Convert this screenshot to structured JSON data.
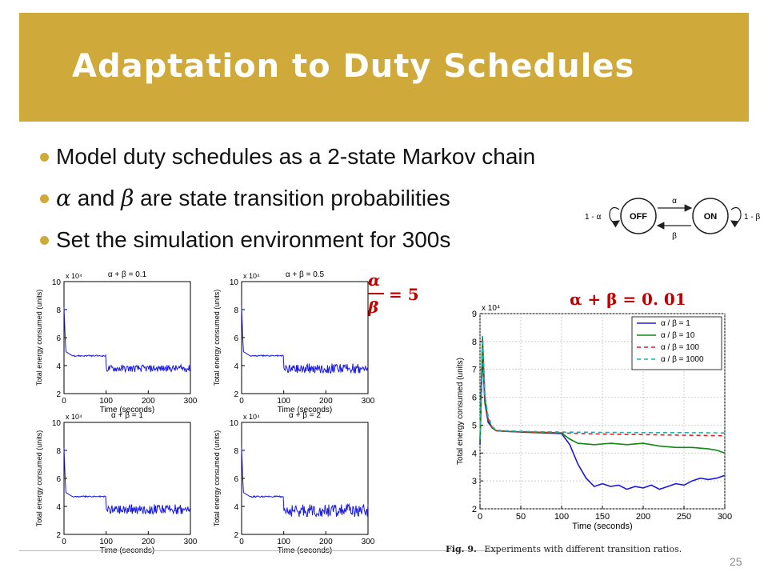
{
  "slide": {
    "title": "Adaptation to Duty Schedules",
    "bullets": [
      {
        "greek1": "",
        "greek2": "",
        "text": "Model duty schedules as a 2-state Markov chain"
      },
      {
        "greek1": "α",
        "mid": " and ",
        "greek2": "β",
        "text": " are state transition probabilities"
      },
      {
        "greek1": "",
        "greek2": "",
        "text": "Set the simulation environment for 300s"
      }
    ],
    "page_number": "25",
    "colors": {
      "title_bar": "#cfaa3a",
      "bullet_dot": "#cfaa3a",
      "formula": "#c00000",
      "text": "#111111"
    }
  },
  "markov_diagram": {
    "state_off": "OFF",
    "state_on": "ON",
    "self_loop_off": "1 - α",
    "self_loop_on": "1 - β",
    "arrow_top": "α",
    "arrow_bottom": "β"
  },
  "formulas": {
    "ratio_num": "α",
    "ratio_den": "β",
    "ratio_value": "= 5",
    "sum": "α + β = 0. 01"
  },
  "caption": {
    "label": "Fig. 9.",
    "text": "Experiments with different transition ratios."
  },
  "chart_data": [
    {
      "type": "line",
      "title": "α + β = 0.1",
      "xlabel": "Time (seconds)",
      "ylabel": "Total energy consumed (units)",
      "y_multiplier": "x 10⁴",
      "xlim": [
        0,
        300
      ],
      "ylim": [
        2,
        10
      ],
      "xticks": [
        "0",
        "100",
        "200",
        "300"
      ],
      "yticks": [
        "2",
        "4",
        "6",
        "8",
        "10"
      ],
      "color": "#1a1adb",
      "profile": {
        "start": 8.2,
        "step_x": 100,
        "before": 4.7,
        "after": 3.8,
        "noise_before": 0.05,
        "noise_after": 0.25
      }
    },
    {
      "type": "line",
      "title": "α + β = 0.5",
      "xlabel": "Time (seconds)",
      "ylabel": "Total energy consumed (units)",
      "y_multiplier": "x 10⁴",
      "xlim": [
        0,
        300
      ],
      "ylim": [
        2,
        10
      ],
      "xticks": [
        "0",
        "100",
        "200",
        "300"
      ],
      "yticks": [
        "2",
        "4",
        "6",
        "8",
        "10"
      ],
      "color": "#1a1adb",
      "profile": {
        "start": 8.2,
        "step_x": 100,
        "before": 4.7,
        "after": 3.8,
        "noise_before": 0.05,
        "noise_after": 0.35
      }
    },
    {
      "type": "line",
      "title": "α + β = 1",
      "xlabel": "Time (seconds)",
      "ylabel": "Total energy consumed (units)",
      "y_multiplier": "x 10⁴",
      "xlim": [
        0,
        300
      ],
      "ylim": [
        2,
        10
      ],
      "xticks": [
        "0",
        "100",
        "200",
        "300"
      ],
      "yticks": [
        "2",
        "4",
        "6",
        "8",
        "10"
      ],
      "color": "#1a1adb",
      "profile": {
        "start": 8.2,
        "step_x": 100,
        "before": 4.7,
        "after": 3.8,
        "noise_before": 0.05,
        "noise_after": 0.35
      }
    },
    {
      "type": "line",
      "title": "α + β = 2",
      "xlabel": "Time (seconds)",
      "ylabel": "Total energy consumed (units)",
      "y_multiplier": "x 10⁴",
      "xlim": [
        0,
        300
      ],
      "ylim": [
        2,
        10
      ],
      "xticks": [
        "0",
        "100",
        "200",
        "300"
      ],
      "yticks": [
        "2",
        "4",
        "6",
        "8",
        "10"
      ],
      "color": "#1a1adb",
      "profile": {
        "start": 8.2,
        "step_x": 100,
        "before": 4.7,
        "after": 3.7,
        "noise_before": 0.05,
        "noise_after": 0.45
      }
    },
    {
      "type": "line",
      "title": "",
      "xlabel": "Time (seconds)",
      "ylabel": "Total energy consumed (units)",
      "y_multiplier": "x 10⁴",
      "xlim": [
        0,
        300
      ],
      "ylim": [
        2,
        9
      ],
      "xticks": [
        "0",
        "50",
        "100",
        "150",
        "200",
        "250",
        "300"
      ],
      "yticks": [
        "2",
        "3",
        "4",
        "5",
        "6",
        "7",
        "8",
        "9"
      ],
      "grid": true,
      "legend_position": "top-right",
      "series": [
        {
          "name": "α / β = 1",
          "color": "#1a1adb",
          "dash": "",
          "x": [
            0,
            3,
            6,
            10,
            15,
            20,
            30,
            50,
            80,
            100,
            110,
            120,
            130,
            140,
            150,
            160,
            170,
            180,
            190,
            200,
            210,
            220,
            230,
            240,
            250,
            260,
            270,
            280,
            290,
            300
          ],
          "y": [
            4.3,
            7.6,
            5.8,
            5.1,
            4.9,
            4.8,
            4.78,
            4.75,
            4.72,
            4.7,
            4.3,
            3.6,
            3.1,
            2.8,
            2.9,
            2.8,
            2.85,
            2.7,
            2.8,
            2.75,
            2.85,
            2.7,
            2.8,
            2.9,
            2.85,
            3.0,
            3.1,
            3.05,
            3.1,
            3.2
          ]
        },
        {
          "name": "α / β = 10",
          "color": "#0f8a0f",
          "dash": "",
          "x": [
            0,
            3,
            6,
            10,
            15,
            20,
            30,
            50,
            80,
            100,
            110,
            120,
            140,
            160,
            180,
            200,
            220,
            240,
            260,
            280,
            290,
            300
          ],
          "y": [
            4.4,
            8.2,
            5.9,
            5.2,
            4.9,
            4.8,
            4.78,
            4.76,
            4.74,
            4.72,
            4.5,
            4.35,
            4.3,
            4.35,
            4.3,
            4.35,
            4.25,
            4.2,
            4.2,
            4.15,
            4.1,
            4.0
          ]
        },
        {
          "name": "α / β = 100",
          "color": "#e02020",
          "dash": "5,4",
          "x": [
            0,
            3,
            6,
            10,
            15,
            20,
            30,
            50,
            80,
            100,
            150,
            200,
            250,
            300
          ],
          "y": [
            4.5,
            8.1,
            6.0,
            5.2,
            4.9,
            4.8,
            4.78,
            4.76,
            4.74,
            4.72,
            4.68,
            4.66,
            4.64,
            4.62
          ]
        },
        {
          "name": "α / β = 1000",
          "color": "#1ab0b0",
          "dash": "5,4",
          "x": [
            0,
            3,
            6,
            10,
            15,
            20,
            30,
            50,
            80,
            100,
            150,
            200,
            250,
            300
          ],
          "y": [
            4.5,
            8.2,
            6.1,
            5.3,
            4.95,
            4.82,
            4.8,
            4.78,
            4.76,
            4.75,
            4.74,
            4.73,
            4.73,
            4.72
          ]
        }
      ]
    }
  ]
}
